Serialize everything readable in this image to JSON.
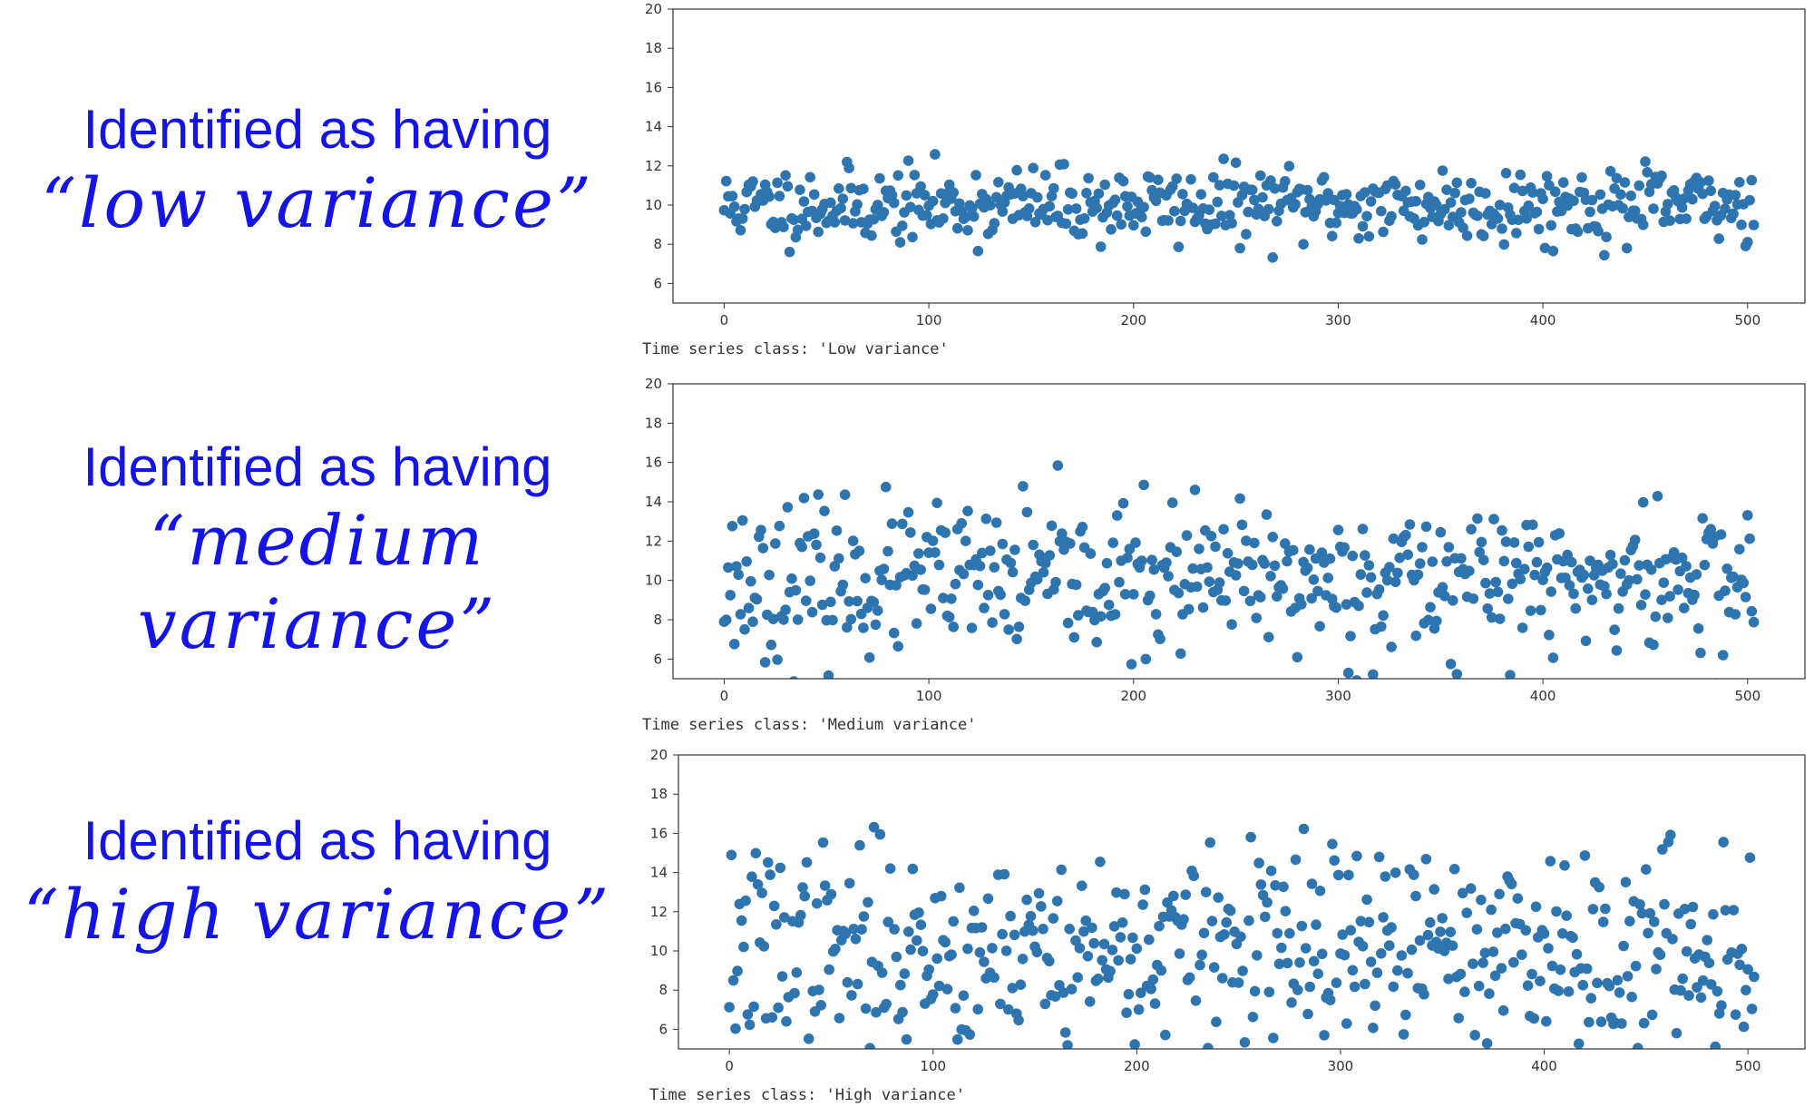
{
  "labels": [
    {
      "lead": "Identified as having",
      "phrase_lines": [
        "“low variance”"
      ]
    },
    {
      "lead": "Identified as having",
      "phrase_lines": [
        "“medium",
        "variance”"
      ]
    },
    {
      "lead": "Identified as having",
      "phrase_lines": [
        "“high variance”"
      ]
    }
  ],
  "chart_data": [
    {
      "type": "scatter",
      "caption": "Time series class: 'Low variance'",
      "x": {
        "start": 0,
        "end": 503,
        "step": 1
      },
      "mean": 10,
      "spread": 0.95,
      "seed": 11,
      "xlim": [
        -25,
        528
      ],
      "ylim": [
        5,
        20
      ],
      "xticks": [
        0,
        100,
        200,
        300,
        400,
        500
      ],
      "yticks": [
        6,
        8,
        10,
        12,
        14,
        16,
        18,
        20
      ],
      "grid": false,
      "color": "#2e75b0"
    },
    {
      "type": "scatter",
      "caption": "Time series class: 'Medium variance'",
      "x": {
        "start": 0,
        "end": 503,
        "step": 1
      },
      "mean": 10,
      "spread": 1.9,
      "seed": 23,
      "xlim": [
        -25,
        528
      ],
      "ylim": [
        5,
        20
      ],
      "xticks": [
        0,
        100,
        200,
        300,
        400,
        500
      ],
      "yticks": [
        6,
        8,
        10,
        12,
        14,
        16,
        18,
        20
      ],
      "grid": false,
      "color": "#2e75b0"
    },
    {
      "type": "scatter",
      "caption": "Time series class: 'High variance'",
      "x": {
        "start": 0,
        "end": 503,
        "step": 1
      },
      "mean": 10,
      "spread": 2.6,
      "seed": 37,
      "xlim": [
        -25,
        528
      ],
      "ylim": [
        5,
        20
      ],
      "xticks": [
        0,
        100,
        200,
        300,
        400,
        500
      ],
      "yticks": [
        6,
        8,
        10,
        12,
        14,
        16,
        18,
        20
      ],
      "grid": false,
      "color": "#2e75b0"
    }
  ]
}
